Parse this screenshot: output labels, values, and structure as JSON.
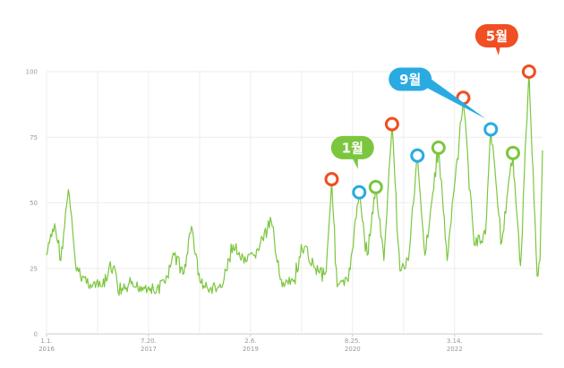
{
  "chart_data": {
    "type": "line",
    "title": "",
    "xlabel": "",
    "ylabel": "",
    "ylim": [
      0,
      100
    ],
    "xlim": [
      "2016-01-01",
      "2023-07-15"
    ],
    "grid": {
      "horizontal": true,
      "vertical": true
    },
    "y_ticks": [
      "0",
      "25",
      "50",
      "75",
      "100"
    ],
    "x_ticks": [
      {
        "date": "2016-01-01",
        "label": "1.1.",
        "year": "2016"
      },
      {
        "date": "2017-07-20",
        "label": "7.20.",
        "year": "2017"
      },
      {
        "date": "2019-02-06",
        "label": "2.6.",
        "year": "2019"
      },
      {
        "date": "2020-08-25",
        "label": "8.25.",
        "year": "2020"
      },
      {
        "date": "2022-03-14",
        "label": "3.14.",
        "year": "2022"
      }
    ],
    "series": [
      {
        "color": "#7cc63f",
        "points": [
          [
            "2016-01-01",
            30
          ],
          [
            "2016-02-15",
            42
          ],
          [
            "2016-03-20",
            28
          ],
          [
            "2016-05-01",
            55
          ],
          [
            "2016-06-15",
            24
          ],
          [
            "2016-09-01",
            19
          ],
          [
            "2016-11-01",
            18
          ],
          [
            "2017-01-10",
            26
          ],
          [
            "2017-02-01",
            16
          ],
          [
            "2017-05-01",
            18
          ],
          [
            "2017-07-20",
            18
          ],
          [
            "2017-09-01",
            16
          ],
          [
            "2017-11-01",
            22
          ],
          [
            "2017-12-15",
            31
          ],
          [
            "2018-02-01",
            23
          ],
          [
            "2018-03-15",
            41
          ],
          [
            "2018-05-01",
            20
          ],
          [
            "2018-06-15",
            17
          ],
          [
            "2018-09-01",
            18
          ],
          [
            "2018-11-01",
            34
          ],
          [
            "2019-01-01",
            27
          ],
          [
            "2019-03-01",
            30
          ],
          [
            "2019-06-01",
            43
          ],
          [
            "2019-08-01",
            18
          ],
          [
            "2019-10-01",
            20
          ],
          [
            "2019-12-01",
            33
          ],
          [
            "2020-02-01",
            25
          ],
          [
            "2020-04-01",
            24
          ],
          [
            "2020-05-01",
            59
          ],
          [
            "2020-06-01",
            18
          ],
          [
            "2020-08-01",
            20
          ],
          [
            "2020-10-01",
            54
          ],
          [
            "2020-11-15",
            30
          ],
          [
            "2021-01-01",
            56
          ],
          [
            "2021-02-15",
            28
          ],
          [
            "2021-04-01",
            80
          ],
          [
            "2021-05-15",
            24
          ],
          [
            "2021-07-01",
            28
          ],
          [
            "2021-08-20",
            68
          ],
          [
            "2021-10-01",
            30
          ],
          [
            "2021-12-15",
            71
          ],
          [
            "2022-02-01",
            28
          ],
          [
            "2022-05-01",
            90
          ],
          [
            "2022-07-01",
            34
          ],
          [
            "2022-09-01",
            38
          ],
          [
            "2022-10-01",
            78
          ],
          [
            "2022-12-01",
            35
          ],
          [
            "2023-02-01",
            69
          ],
          [
            "2023-03-15",
            26
          ],
          [
            "2023-05-01",
            100
          ],
          [
            "2023-06-15",
            22
          ],
          [
            "2023-07-01",
            28
          ],
          [
            "2023-07-15",
            70
          ]
        ]
      }
    ],
    "markers": [
      {
        "date": "2020-05-01",
        "value": 59,
        "color": "#f04e23"
      },
      {
        "date": "2020-10-01",
        "value": 54,
        "color": "#29abe2"
      },
      {
        "date": "2021-01-01",
        "value": 56,
        "color": "#7cc63f"
      },
      {
        "date": "2021-04-01",
        "value": 80,
        "color": "#f04e23"
      },
      {
        "date": "2021-08-20",
        "value": 68,
        "color": "#29abe2"
      },
      {
        "date": "2021-12-15",
        "value": 71,
        "color": "#7cc63f"
      },
      {
        "date": "2022-05-01",
        "value": 90,
        "color": "#f04e23"
      },
      {
        "date": "2022-10-01",
        "value": 78,
        "color": "#29abe2"
      },
      {
        "date": "2023-02-01",
        "value": 69,
        "color": "#7cc63f"
      },
      {
        "date": "2023-05-01",
        "value": 100,
        "color": "#f04e23"
      }
    ],
    "annotations": [
      {
        "text": "1월",
        "target_date": "2021-01-01",
        "target_value": 56,
        "color": "#7cc63f"
      },
      {
        "text": "9월",
        "target_date": "2022-10-01",
        "target_value": 78,
        "color": "#29abe2"
      },
      {
        "text": "5월",
        "target_date": "2023-05-01",
        "target_value": 100,
        "color": "#f04e23"
      }
    ]
  }
}
